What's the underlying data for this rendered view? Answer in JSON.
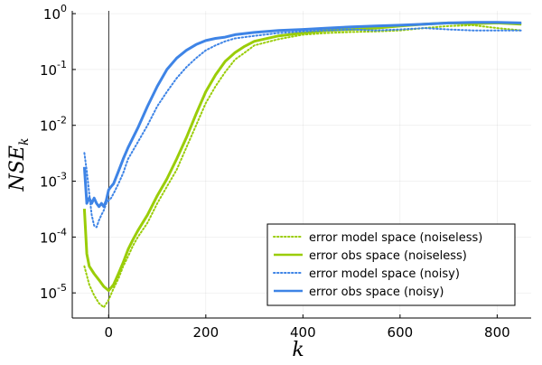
{
  "chart_data": {
    "type": "line",
    "title": "",
    "xlabel": "k",
    "ylabel_main": "NSE",
    "ylabel_sub": "k",
    "xlim": [
      -75,
      870
    ],
    "ylim_log10": [
      -5.45,
      0.05
    ],
    "yscale": "log",
    "grid": true,
    "legend_position": "bottom-right",
    "vline_x": 0,
    "xticks": [
      {
        "value": 0,
        "label": "0"
      },
      {
        "value": 200,
        "label": "200"
      },
      {
        "value": 400,
        "label": "400"
      },
      {
        "value": 600,
        "label": "600"
      },
      {
        "value": 800,
        "label": "800"
      }
    ],
    "yticks": [
      {
        "exp": 0,
        "base": "10",
        "label": "0"
      },
      {
        "exp": -1,
        "base": "10",
        "label": "-1"
      },
      {
        "exp": -2,
        "base": "10",
        "label": "-2"
      },
      {
        "exp": -3,
        "base": "10",
        "label": "-3"
      },
      {
        "exp": -4,
        "base": "10",
        "label": "-4"
      },
      {
        "exp": -5,
        "base": "10",
        "label": "-5"
      }
    ],
    "series": [
      {
        "name": "error model space (noiseless)",
        "color": "#9ACD08",
        "style": "dotted",
        "x": [
          -50,
          -40,
          -30,
          -20,
          -10,
          0,
          10,
          20,
          30,
          40,
          50,
          60,
          80,
          100,
          120,
          140,
          160,
          180,
          200,
          220,
          240,
          260,
          280,
          300,
          350,
          400,
          450,
          500,
          550,
          600,
          650,
          700,
          750,
          800,
          850
        ],
        "y": [
          3e-05,
          1.4e-05,
          9e-06,
          6.5e-06,
          5.5e-06,
          7.5e-06,
          1.2e-05,
          1.8e-05,
          3e-05,
          4.5e-05,
          7e-05,
          0.0001,
          0.00018,
          0.0004,
          0.0008,
          0.0016,
          0.004,
          0.01,
          0.025,
          0.05,
          0.09,
          0.15,
          0.2,
          0.27,
          0.35,
          0.42,
          0.45,
          0.47,
          0.48,
          0.5,
          0.55,
          0.6,
          0.62,
          0.55,
          0.5
        ]
      },
      {
        "name": "error obs space (noiseless)",
        "color": "#9ACD08",
        "style": "solid",
        "x": [
          -50,
          -45,
          -40,
          -30,
          -20,
          -10,
          0,
          10,
          20,
          30,
          40,
          50,
          60,
          80,
          100,
          120,
          140,
          160,
          180,
          200,
          220,
          240,
          260,
          280,
          300,
          350,
          400,
          450,
          500,
          550,
          600,
          650,
          700,
          750,
          800,
          850
        ],
        "y": [
          0.00032,
          5e-05,
          3e-05,
          2.2e-05,
          1.7e-05,
          1.3e-05,
          1.1e-05,
          1.4e-05,
          2.2e-05,
          3.5e-05,
          6e-05,
          9e-05,
          0.00013,
          0.00025,
          0.00055,
          0.0011,
          0.0025,
          0.006,
          0.016,
          0.04,
          0.08,
          0.14,
          0.2,
          0.26,
          0.32,
          0.4,
          0.45,
          0.5,
          0.52,
          0.55,
          0.6,
          0.65,
          0.68,
          0.66,
          0.68,
          0.65
        ]
      },
      {
        "name": "error model space (noisy)",
        "color": "#3E84E6",
        "style": "dotted",
        "x": [
          -50,
          -45,
          -40,
          -35,
          -30,
          -25,
          -20,
          -15,
          -10,
          -5,
          0,
          5,
          10,
          20,
          30,
          40,
          60,
          80,
          100,
          120,
          140,
          160,
          180,
          200,
          220,
          240,
          260,
          280,
          300,
          350,
          400,
          450,
          500,
          550,
          600,
          650,
          700,
          750,
          800,
          850
        ],
        "y": [
          0.0032,
          0.0015,
          0.0006,
          0.00025,
          0.00016,
          0.00015,
          0.0002,
          0.00025,
          0.0003,
          0.0004,
          0.00045,
          0.0005,
          0.0006,
          0.0009,
          0.0014,
          0.0025,
          0.005,
          0.01,
          0.022,
          0.04,
          0.07,
          0.11,
          0.16,
          0.22,
          0.27,
          0.32,
          0.36,
          0.38,
          0.4,
          0.45,
          0.48,
          0.5,
          0.52,
          0.5,
          0.52,
          0.55,
          0.52,
          0.5,
          0.5,
          0.5
        ]
      },
      {
        "name": "error obs space (noisy)",
        "color": "#3E84E6",
        "style": "solid",
        "x": [
          -50,
          -45,
          -40,
          -35,
          -30,
          -25,
          -20,
          -15,
          -10,
          -5,
          0,
          5,
          10,
          20,
          30,
          40,
          60,
          80,
          100,
          120,
          140,
          160,
          180,
          200,
          220,
          240,
          260,
          280,
          300,
          350,
          400,
          450,
          500,
          550,
          600,
          650,
          700,
          750,
          800,
          850
        ],
        "y": [
          0.0018,
          0.0004,
          0.0005,
          0.0004,
          0.0005,
          0.0004,
          0.00035,
          0.0004,
          0.00035,
          0.00045,
          0.0007,
          0.0008,
          0.0009,
          0.0015,
          0.0025,
          0.004,
          0.009,
          0.022,
          0.05,
          0.1,
          0.16,
          0.22,
          0.28,
          0.33,
          0.36,
          0.38,
          0.42,
          0.44,
          0.46,
          0.5,
          0.52,
          0.55,
          0.58,
          0.6,
          0.62,
          0.65,
          0.68,
          0.7,
          0.7,
          0.68
        ]
      }
    ]
  }
}
